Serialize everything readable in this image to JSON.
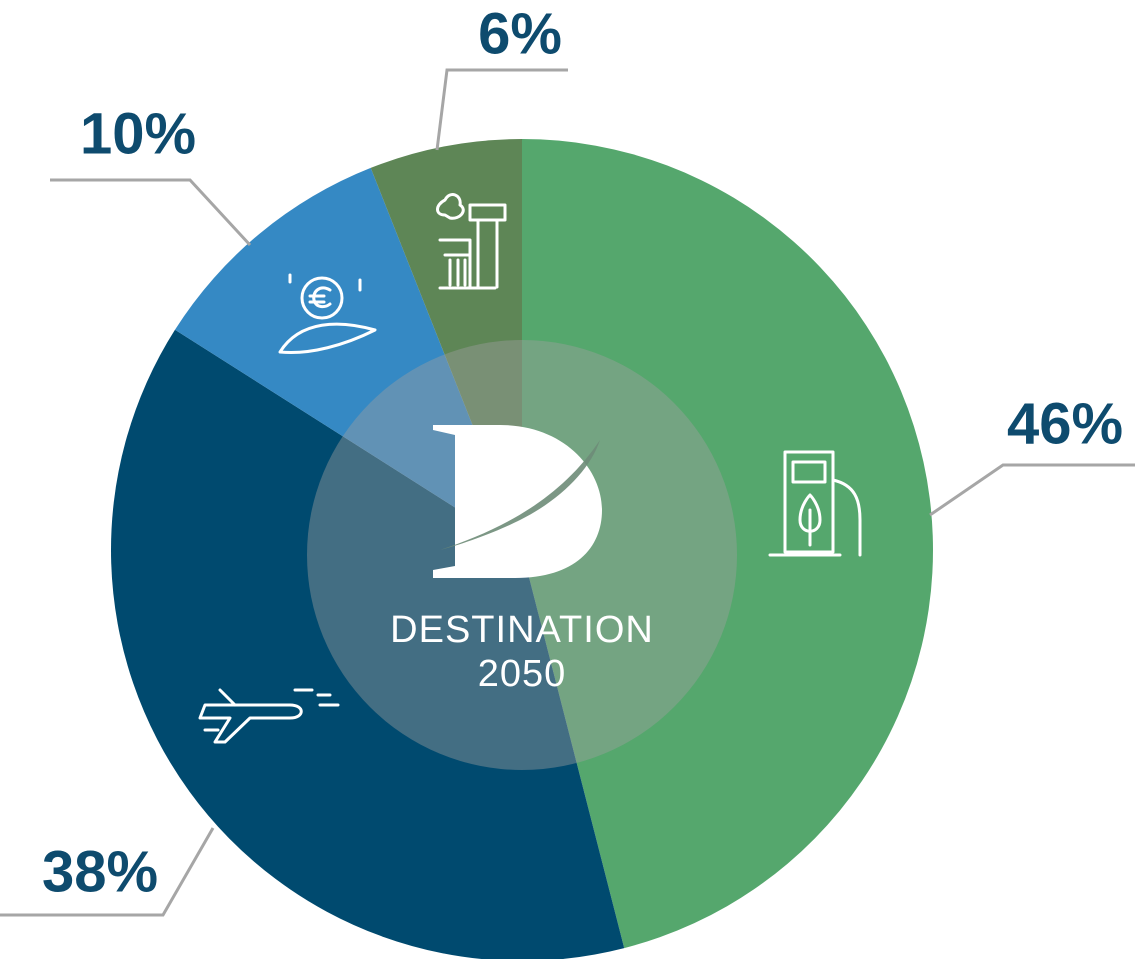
{
  "chart_data": {
    "type": "pie",
    "values": [
      46,
      38,
      10,
      6
    ],
    "value_labels": [
      "46%",
      "38%",
      "10%",
      "6%"
    ],
    "colors": [
      "#55a76d",
      "#004a6f",
      "#3589c4",
      "#5e8656"
    ],
    "center_text": [
      "DESTINATION",
      "2050"
    ]
  }
}
